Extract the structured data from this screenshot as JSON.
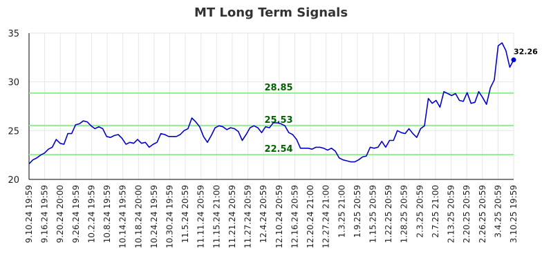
{
  "chart_data": {
    "type": "line",
    "title": "MT Long Term Signals",
    "xlabel": "",
    "ylabel": "",
    "ylim": [
      20,
      35
    ],
    "yticks": [
      "20",
      "25",
      "30",
      "35"
    ],
    "grid": true,
    "colors": {
      "line": "#0000cc",
      "hline": "#90ee90",
      "hlabel": "#006400",
      "grid": "#e6e6e6"
    },
    "x_tick_labels": [
      "9.10.24 19:59",
      "9.16.24 19:59",
      "9.20.24 20:00",
      "9.26.24 19:59",
      "10.2.24 19:59",
      "10.8.24 19:59",
      "10.14.24 19:59",
      "10.18.24 20:00",
      "10.24.24 19:59",
      "10.30.24 19:59",
      "11.5.24 20:59",
      "11.11.24 20:59",
      "11.15.24 21:00",
      "11.21.24 20:59",
      "11.27.24 20:59",
      "12.4.24 20:59",
      "12.10.24 20:59",
      "12.16.24 20:59",
      "12.20.24 21:00",
      "12.27.24 21:00",
      "1.3.25 21:00",
      "1.9.25 20:59",
      "1.15.25 20:59",
      "1.22.25 20:59",
      "1.28.25 20:59",
      "2.3.25 20:59",
      "2.7.25 21:00",
      "2.13.25 20:59",
      "2.20.25 20:59",
      "2.26.25 20:59",
      "3.4.25 20:59",
      "3.10.25 19:59"
    ],
    "values": [
      21.6,
      22.0,
      22.2,
      22.5,
      22.7,
      23.1,
      23.3,
      24.1,
      23.7,
      23.6,
      24.7,
      24.7,
      25.6,
      25.7,
      26.0,
      25.9,
      25.5,
      25.2,
      25.4,
      25.2,
      24.4,
      24.3,
      24.5,
      24.6,
      24.2,
      23.6,
      23.8,
      23.7,
      24.1,
      23.7,
      23.8,
      23.3,
      23.6,
      23.8,
      24.7,
      24.6,
      24.4,
      24.4,
      24.4,
      24.6,
      25.0,
      25.2,
      26.3,
      25.9,
      25.4,
      24.4,
      23.8,
      24.5,
      25.3,
      25.5,
      25.4,
      25.1,
      25.3,
      25.2,
      24.9,
      24.0,
      24.6,
      25.3,
      25.5,
      25.3,
      24.8,
      25.4,
      25.3,
      25.8,
      25.8,
      25.7,
      25.5,
      24.8,
      24.6,
      24.1,
      23.2,
      23.2,
      23.2,
      23.1,
      23.3,
      23.3,
      23.2,
      23.0,
      23.2,
      22.9,
      22.2,
      22.0,
      21.9,
      21.8,
      21.8,
      22.0,
      22.3,
      22.4,
      23.3,
      23.2,
      23.3,
      23.9,
      23.3,
      24.0,
      24.0,
      25.0,
      24.8,
      24.7,
      25.2,
      24.7,
      24.3,
      25.2,
      25.5,
      28.3,
      27.8,
      28.1,
      27.4,
      29.0,
      28.8,
      28.6,
      28.8,
      28.1,
      28.0,
      28.9,
      27.8,
      27.9,
      29.0,
      28.4,
      27.7,
      29.4,
      30.2,
      33.7,
      34.0,
      33.2,
      31.5,
      32.26
    ],
    "last_value_label": "32.26",
    "horizontal_lines": [
      {
        "value": 28.85,
        "label": "28.85"
      },
      {
        "value": 25.53,
        "label": "25.53"
      },
      {
        "value": 22.54,
        "label": "22.54"
      }
    ]
  }
}
